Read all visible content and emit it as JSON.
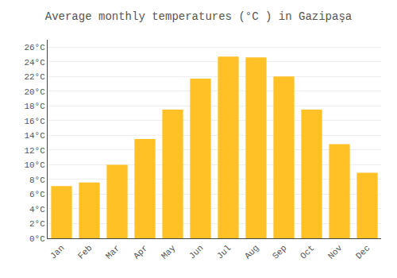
{
  "chart_data": {
    "type": "bar",
    "title": "Average monthly temperatures (°C ) in Gazipaşa",
    "categories": [
      "Jan",
      "Feb",
      "Mar",
      "Apr",
      "May",
      "Jun",
      "Jul",
      "Aug",
      "Sep",
      "Oct",
      "Nov",
      "Dec"
    ],
    "values": [
      7.1,
      7.6,
      10.0,
      13.5,
      17.5,
      21.7,
      24.7,
      24.6,
      22.0,
      17.5,
      12.8,
      8.9
    ],
    "color": "#FFC125",
    "ylim": [
      0,
      27
    ],
    "yticks": [
      {
        "value": 0,
        "label": "0°C"
      },
      {
        "value": 2,
        "label": "2°C"
      },
      {
        "value": 4,
        "label": "4°C"
      },
      {
        "value": 6,
        "label": "6°C"
      },
      {
        "value": 8,
        "label": "8°C"
      },
      {
        "value": 10,
        "label": "10°C"
      },
      {
        "value": 12,
        "label": "12°C"
      },
      {
        "value": 14,
        "label": "14°C"
      },
      {
        "value": 16,
        "label": "16°C"
      },
      {
        "value": 18,
        "label": "18°C"
      },
      {
        "value": 20,
        "label": "20°C"
      },
      {
        "value": 22,
        "label": "22°C"
      },
      {
        "value": 24,
        "label": "24°C"
      },
      {
        "value": 26,
        "label": "26°C"
      }
    ],
    "grid": true
  }
}
